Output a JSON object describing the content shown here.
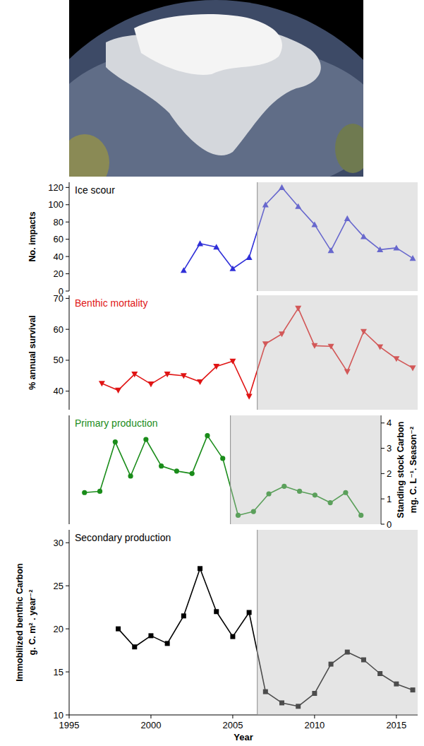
{
  "chart_data": [
    {
      "type": "line",
      "title": "Ice scour",
      "color": "#000000",
      "ylabel": [
        "No. impacts"
      ],
      "x": [
        2002,
        2003,
        2004,
        2005,
        2006,
        2007,
        2008,
        2009,
        2010,
        2011,
        2012,
        2013,
        2014,
        2015,
        2016
      ],
      "series": [
        {
          "color": "#2f2fd8",
          "marker": "triangle-up",
          "values": [
            24,
            55,
            51,
            26,
            39,
            100,
            120,
            98,
            77,
            47,
            84,
            63,
            48,
            50,
            38
          ]
        }
      ],
      "xlim": [
        1995,
        2016.3
      ],
      "ylim": [
        0,
        126
      ],
      "yticks": [
        0,
        20,
        40,
        60,
        80,
        100,
        120
      ],
      "shaded_from": 2006.5,
      "grid": false
    },
    {
      "type": "line",
      "title": "Benthic mortality",
      "color": "#e01414",
      "ylabel": [
        "% annual survival"
      ],
      "x": [
        1997,
        1998,
        1999,
        2000,
        2001,
        2002,
        2003,
        2004,
        2005,
        2006,
        2007,
        2008,
        2009,
        2010,
        2011,
        2012,
        2013,
        2014,
        2015,
        2016
      ],
      "series": [
        {
          "color": "#e01414",
          "marker": "triangle-down",
          "values": [
            42.5,
            40.3,
            45.5,
            42.3,
            45.5,
            45,
            43,
            48,
            49.7,
            38.3,
            55.3,
            58.5,
            66.8,
            54.7,
            54.5,
            46.3,
            59.3,
            54.3,
            50.5,
            47.5
          ]
        }
      ],
      "xlim": [
        1995,
        2016.3
      ],
      "ylim": [
        34,
        71
      ],
      "yticks": [
        40,
        50,
        60,
        70
      ],
      "shaded_from": 2006.5,
      "grid": false
    },
    {
      "type": "line",
      "title": "Primary production",
      "color": "#1a8c1a",
      "y2label": [
        "Standing stock Carbon",
        "mg. C. L⁻¹. Season⁻²"
      ],
      "x": [
        1997,
        1998,
        1999,
        2000,
        2001,
        2002,
        2003,
        2004,
        2005,
        2006,
        2007,
        2008,
        2009,
        2010,
        2011,
        2012,
        2013,
        2014,
        2015
      ],
      "series": [
        {
          "color": "#1a8c1a",
          "marker": "circle",
          "axis": "y2",
          "values": [
            1.25,
            1.3,
            3.25,
            1.9,
            3.35,
            2.3,
            2.1,
            2.0,
            3.5,
            2.6,
            0.35,
            0.5,
            1.2,
            1.5,
            1.3,
            1.15,
            0.85,
            1.25,
            0.35
          ]
        }
      ],
      "xlim": [
        1996,
        2016.3
      ],
      "y2lim": [
        0,
        4.3
      ],
      "y2ticks": [
        0,
        1,
        2,
        3,
        4
      ],
      "shaded_from": 2006.5,
      "grid": false
    },
    {
      "type": "line",
      "title": "Secondary production",
      "color": "#000000",
      "ylabel": [
        "Immobilized benthic Carbon",
        "g. C. m² . year⁻²"
      ],
      "xlabel": "Year",
      "x": [
        1998,
        1999,
        2000,
        2001,
        2002,
        2003,
        2004,
        2005,
        2006,
        2007,
        2008,
        2009,
        2010,
        2011,
        2012,
        2013,
        2014,
        2015,
        2016
      ],
      "series": [
        {
          "color": "#000000",
          "marker": "square",
          "values": [
            20,
            17.9,
            19.2,
            18.3,
            21.5,
            27,
            22,
            19.1,
            21.9,
            12.7,
            11.4,
            11,
            12.5,
            15.9,
            17.3,
            16.4,
            14.8,
            13.6,
            12.9
          ]
        }
      ],
      "xlim": [
        1995,
        2016.3
      ],
      "ylim": [
        10,
        31.5
      ],
      "yticks": [
        10,
        15,
        20,
        25,
        30
      ],
      "xticks": [
        1995,
        2000,
        2005,
        2010,
        2015
      ],
      "shaded_from": 2006.5,
      "grid": false
    }
  ]
}
